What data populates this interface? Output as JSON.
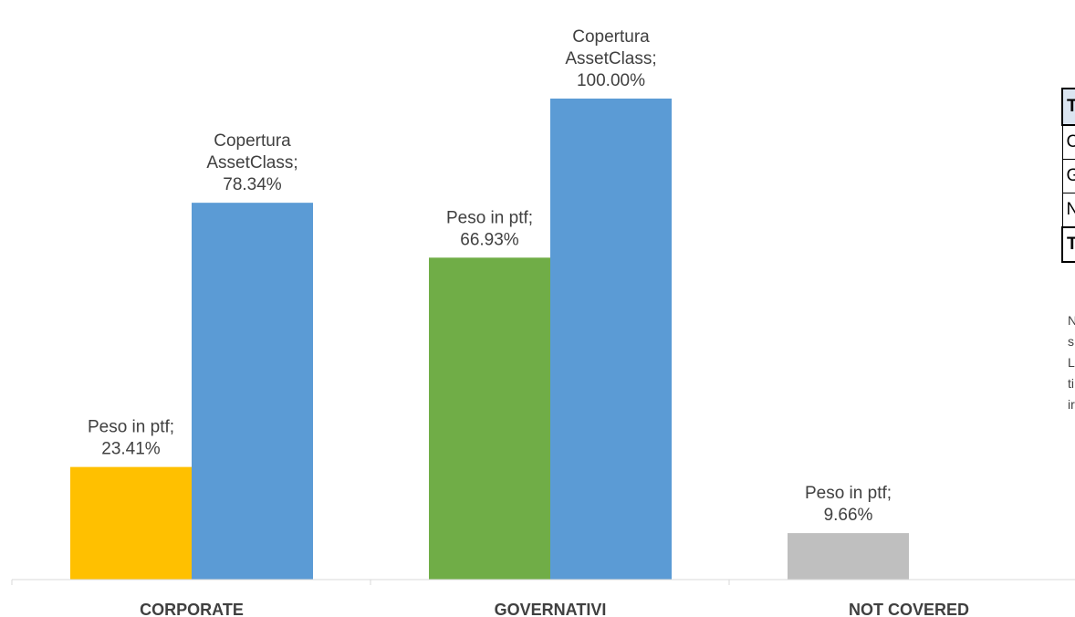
{
  "chart_data": {
    "type": "bar",
    "categories": [
      "CORPORATE",
      "GOVERNATIVI",
      "NOT COVERED"
    ],
    "series": [
      {
        "name": "Peso in ptf",
        "values": [
          23.41,
          66.93,
          9.66
        ],
        "colors": [
          "#FFC000",
          "#70AD47",
          "#BFBFBF"
        ]
      },
      {
        "name": "Copertura AssetClass",
        "values": [
          78.34,
          100.0,
          null
        ],
        "colors": [
          "#5B9BD5",
          "#5B9BD5",
          "#5B9BD5"
        ]
      }
    ],
    "data_labels": [
      [
        "Peso in ptf;",
        "23.41%"
      ],
      [
        "Copertura",
        "AssetClass;",
        "78.34%"
      ],
      [
        "Peso in ptf;",
        "66.93%"
      ],
      [
        "Copertura",
        "AssetClass;",
        "100.00%"
      ],
      [
        "Peso in ptf;",
        "9.66%"
      ]
    ],
    "ylim": [
      0,
      100
    ],
    "gridlines": false,
    "legend": "none"
  },
  "side_table": {
    "rows": [
      {
        "text": "T",
        "style": "head"
      },
      {
        "text": "C",
        "style": "body"
      },
      {
        "text": "G",
        "style": "body"
      },
      {
        "text": "N",
        "style": "body"
      },
      {
        "text": "T",
        "style": "total"
      }
    ]
  },
  "side_note": {
    "lines": [
      "N",
      "s",
      "L",
      "ti",
      "ir"
    ]
  }
}
